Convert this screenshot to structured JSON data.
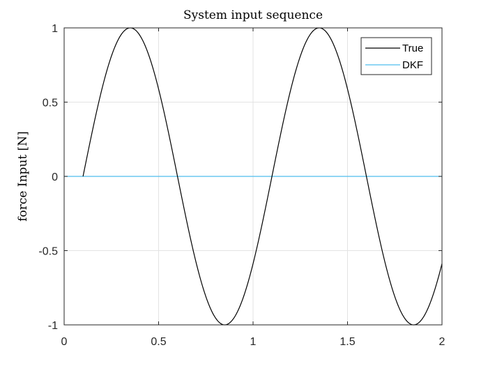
{
  "chart_data": {
    "type": "line",
    "title": "System input sequence",
    "xlabel": "",
    "ylabel": "force Input  [N]",
    "xlim": [
      0,
      2
    ],
    "ylim": [
      -1,
      1
    ],
    "xticks": [
      0,
      0.5,
      1,
      1.5,
      2
    ],
    "xtick_labels": [
      "0",
      "0.5",
      "1",
      "1.5",
      "2"
    ],
    "yticks": [
      -1,
      -0.5,
      0,
      0.5,
      1
    ],
    "ytick_labels": [
      "-1",
      "-0.5",
      "0",
      "0.5",
      "1"
    ],
    "grid": true,
    "legend_position": "top-right",
    "series": [
      {
        "name": "True",
        "color": "#000000",
        "x": [
          0.1,
          0.15,
          0.2,
          0.25,
          0.3,
          0.35,
          0.4,
          0.45,
          0.5,
          0.55,
          0.6,
          0.65,
          0.7,
          0.75,
          0.8,
          0.85,
          0.9,
          0.95,
          1.0,
          1.05,
          1.1,
          1.15,
          1.2,
          1.25,
          1.3,
          1.35,
          1.4,
          1.45,
          1.5,
          1.55,
          1.6,
          1.65,
          1.7,
          1.75,
          1.8,
          1.85,
          1.9,
          1.95,
          2.0
        ],
        "y": [
          0,
          0.309,
          0.588,
          0.809,
          0.951,
          1.0,
          0.951,
          0.809,
          0.588,
          0.309,
          0,
          -0.309,
          -0.588,
          -0.809,
          -0.951,
          -1.0,
          -0.951,
          -0.809,
          -0.588,
          -0.309,
          0,
          0.309,
          0.588,
          0.809,
          0.951,
          1.0,
          0.951,
          0.809,
          0.588,
          0.309,
          0,
          -0.309,
          -0.588,
          -0.809,
          -0.951,
          -1.0,
          -0.951,
          -0.809,
          -0.588
        ]
      },
      {
        "name": "DKF",
        "color": "#4DBEEE",
        "x": [
          0,
          2
        ],
        "y": [
          0,
          0
        ]
      }
    ]
  }
}
